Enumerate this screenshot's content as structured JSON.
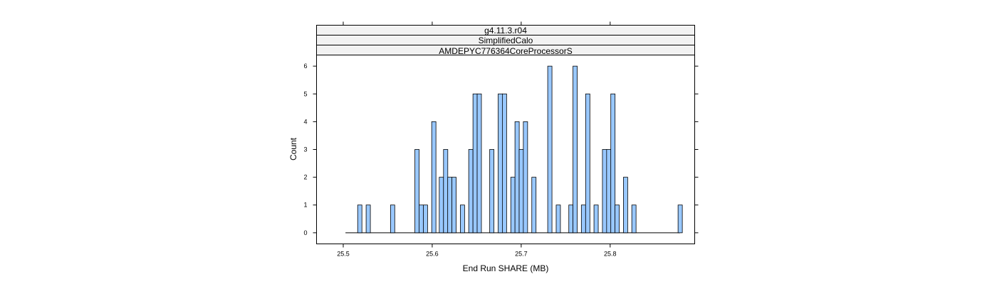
{
  "chart_data": {
    "type": "bar",
    "strips": [
      "g4.11.3.r04",
      "SimplifiedCalo",
      "AMDEPYC776364CoreProcessorS"
    ],
    "xlabel": "End Run SHARE (MB)",
    "ylabel": "Count",
    "xlim": [
      25.47,
      25.895
    ],
    "ylim": [
      -0.4,
      6.4
    ],
    "x_ticks": [
      "25.5",
      "25.6",
      "25.7",
      "25.8"
    ],
    "y_ticks": [
      "0",
      "1",
      "2",
      "3",
      "4",
      "5",
      "6"
    ],
    "bin_width": 0.00478,
    "baseline": [
      25.5025,
      25.8785
    ],
    "bins": [
      {
        "x": 25.5186,
        "count": 1
      },
      {
        "x": 25.5281,
        "count": 1
      },
      {
        "x": 25.5555,
        "count": 1
      },
      {
        "x": 25.5829,
        "count": 3
      },
      {
        "x": 25.5876,
        "count": 1
      },
      {
        "x": 25.5924,
        "count": 1
      },
      {
        "x": 25.6018,
        "count": 4
      },
      {
        "x": 25.6103,
        "count": 2
      },
      {
        "x": 25.6151,
        "count": 3
      },
      {
        "x": 25.6198,
        "count": 2
      },
      {
        "x": 25.6245,
        "count": 2
      },
      {
        "x": 25.634,
        "count": 1
      },
      {
        "x": 25.6434,
        "count": 3
      },
      {
        "x": 25.6482,
        "count": 5
      },
      {
        "x": 25.6529,
        "count": 5
      },
      {
        "x": 25.667,
        "count": 3
      },
      {
        "x": 25.6765,
        "count": 5
      },
      {
        "x": 25.6812,
        "count": 5
      },
      {
        "x": 25.6907,
        "count": 2
      },
      {
        "x": 25.6954,
        "count": 4
      },
      {
        "x": 25.7001,
        "count": 3
      },
      {
        "x": 25.7048,
        "count": 4
      },
      {
        "x": 25.7143,
        "count": 2
      },
      {
        "x": 25.7322,
        "count": 6
      },
      {
        "x": 25.7417,
        "count": 1
      },
      {
        "x": 25.7559,
        "count": 1
      },
      {
        "x": 25.7606,
        "count": 6
      },
      {
        "x": 25.77,
        "count": 1
      },
      {
        "x": 25.7748,
        "count": 5
      },
      {
        "x": 25.7842,
        "count": 1
      },
      {
        "x": 25.7937,
        "count": 3
      },
      {
        "x": 25.7984,
        "count": 3
      },
      {
        "x": 25.8031,
        "count": 5
      },
      {
        "x": 25.8078,
        "count": 1
      },
      {
        "x": 25.8173,
        "count": 2
      },
      {
        "x": 25.8267,
        "count": 1
      },
      {
        "x": 25.8787,
        "count": 1
      }
    ],
    "colors": {
      "bar_fill": "#99c8ff",
      "bar_stroke": "#000000",
      "strip_fill": "#f2f2f2"
    }
  }
}
